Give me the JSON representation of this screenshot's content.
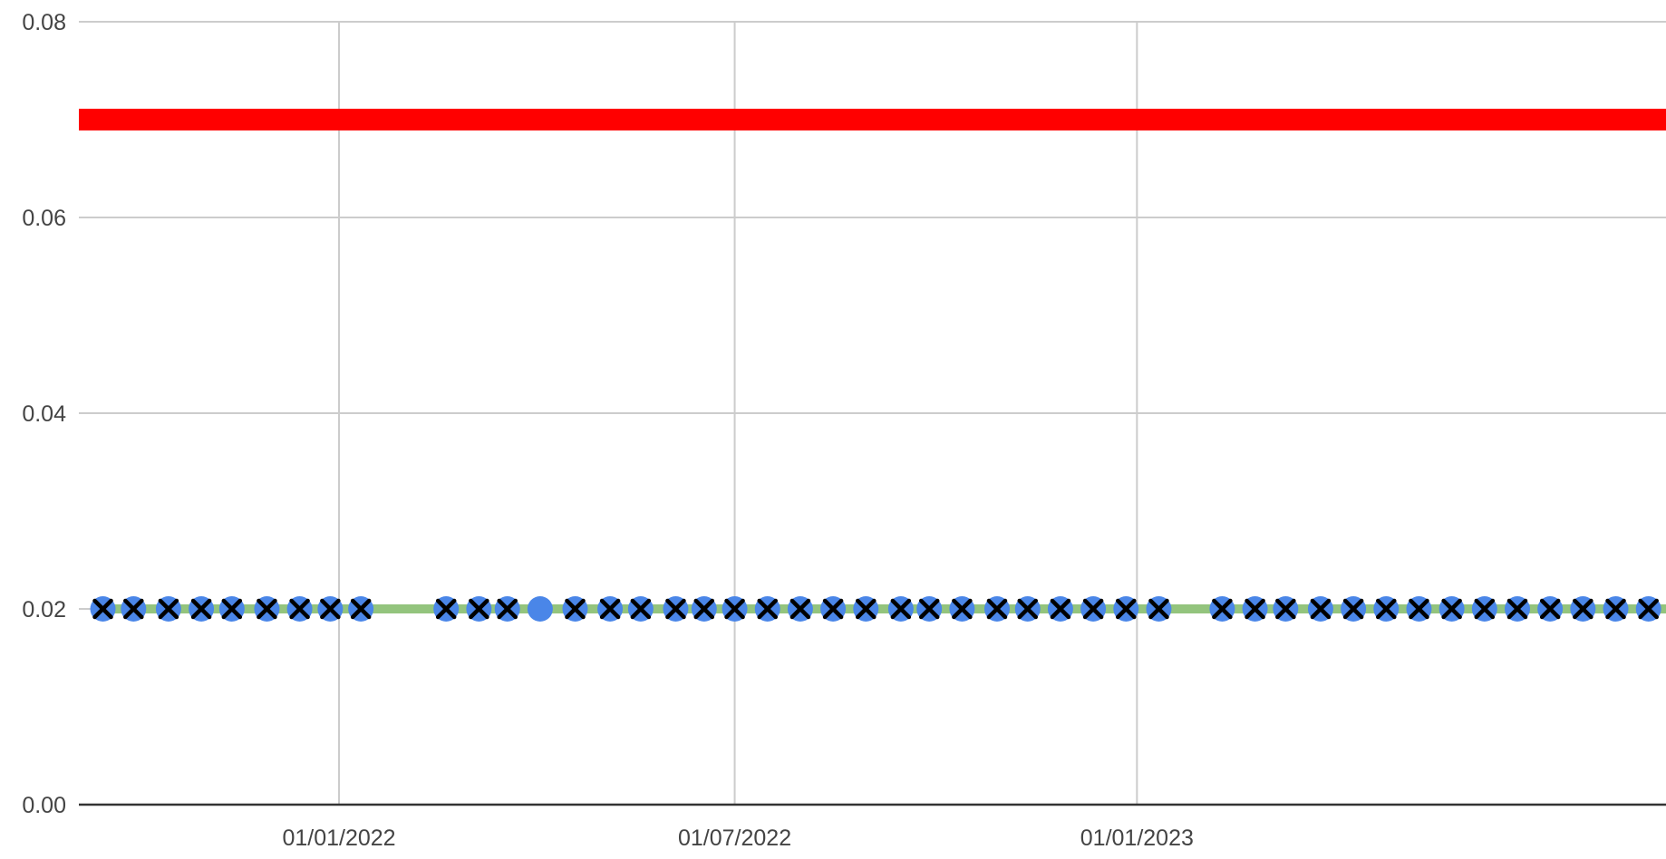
{
  "chart_data": {
    "type": "line",
    "title": "",
    "xlabel": "",
    "ylabel": "",
    "x_axis_type": "date",
    "xlim": [
      "2021-09-04",
      "2023-08-31"
    ],
    "ylim": [
      0,
      0.08
    ],
    "grid": true,
    "legend": "none",
    "y_ticks": [
      {
        "value": 0.0,
        "label": "0.00"
      },
      {
        "value": 0.02,
        "label": "0.02"
      },
      {
        "value": 0.04,
        "label": "0.04"
      },
      {
        "value": 0.06,
        "label": "0.06"
      },
      {
        "value": 0.08,
        "label": "0.08"
      }
    ],
    "x_ticks": [
      {
        "value": "2022-01-01",
        "label": "01/01/2022"
      },
      {
        "value": "2022-07-01",
        "label": "01/07/2022"
      },
      {
        "value": "2023-01-01",
        "label": "01/01/2023"
      }
    ],
    "colors": {
      "limit": "#ff0000",
      "series_line": "#93c47d",
      "marker": "#4a86e8",
      "cross": "#000000",
      "grid": "#cccccc",
      "axis": "#333333",
      "tick_text": "#444444"
    },
    "reference_lines": [
      {
        "y": 0.07,
        "x_start": "2021-09-04",
        "x_end": "2023-08-31"
      }
    ],
    "series": [
      {
        "line": {
          "y": 0.02,
          "x_start": "2021-09-15",
          "x_end": "2023-08-31"
        },
        "points": [
          {
            "x": "2021-09-15",
            "y": 0.02,
            "cross": true
          },
          {
            "x": "2021-09-29",
            "y": 0.02,
            "cross": true
          },
          {
            "x": "2021-10-15",
            "y": 0.02,
            "cross": true
          },
          {
            "x": "2021-10-30",
            "y": 0.02,
            "cross": true
          },
          {
            "x": "2021-11-13",
            "y": 0.02,
            "cross": true
          },
          {
            "x": "2021-11-29",
            "y": 0.02,
            "cross": true
          },
          {
            "x": "2021-12-14",
            "y": 0.02,
            "cross": true
          },
          {
            "x": "2021-12-28",
            "y": 0.02,
            "cross": true
          },
          {
            "x": "2022-01-11",
            "y": 0.02,
            "cross": true
          },
          {
            "x": "2022-02-19",
            "y": 0.02,
            "cross": true
          },
          {
            "x": "2022-03-06",
            "y": 0.02,
            "cross": true
          },
          {
            "x": "2022-03-19",
            "y": 0.02,
            "cross": true
          },
          {
            "x": "2022-04-03",
            "y": 0.02,
            "cross": false
          },
          {
            "x": "2022-04-19",
            "y": 0.02,
            "cross": true
          },
          {
            "x": "2022-05-05",
            "y": 0.02,
            "cross": true
          },
          {
            "x": "2022-05-19",
            "y": 0.02,
            "cross": true
          },
          {
            "x": "2022-06-04",
            "y": 0.02,
            "cross": true
          },
          {
            "x": "2022-06-17",
            "y": 0.02,
            "cross": true
          },
          {
            "x": "2022-07-01",
            "y": 0.02,
            "cross": true
          },
          {
            "x": "2022-07-16",
            "y": 0.02,
            "cross": true
          },
          {
            "x": "2022-07-31",
            "y": 0.02,
            "cross": true
          },
          {
            "x": "2022-08-15",
            "y": 0.02,
            "cross": true
          },
          {
            "x": "2022-08-30",
            "y": 0.02,
            "cross": true
          },
          {
            "x": "2022-09-15",
            "y": 0.02,
            "cross": true
          },
          {
            "x": "2022-09-28",
            "y": 0.02,
            "cross": true
          },
          {
            "x": "2022-10-13",
            "y": 0.02,
            "cross": true
          },
          {
            "x": "2022-10-29",
            "y": 0.02,
            "cross": true
          },
          {
            "x": "2022-11-12",
            "y": 0.02,
            "cross": true
          },
          {
            "x": "2022-11-27",
            "y": 0.02,
            "cross": true
          },
          {
            "x": "2022-12-12",
            "y": 0.02,
            "cross": true
          },
          {
            "x": "2022-12-27",
            "y": 0.02,
            "cross": true
          },
          {
            "x": "2023-01-11",
            "y": 0.02,
            "cross": true
          },
          {
            "x": "2023-02-09",
            "y": 0.02,
            "cross": true
          },
          {
            "x": "2023-02-24",
            "y": 0.02,
            "cross": true
          },
          {
            "x": "2023-03-10",
            "y": 0.02,
            "cross": true
          },
          {
            "x": "2023-03-26",
            "y": 0.02,
            "cross": true
          },
          {
            "x": "2023-04-10",
            "y": 0.02,
            "cross": true
          },
          {
            "x": "2023-04-25",
            "y": 0.02,
            "cross": true
          },
          {
            "x": "2023-05-10",
            "y": 0.02,
            "cross": true
          },
          {
            "x": "2023-05-25",
            "y": 0.02,
            "cross": true
          },
          {
            "x": "2023-06-09",
            "y": 0.02,
            "cross": true
          },
          {
            "x": "2023-06-24",
            "y": 0.02,
            "cross": true
          },
          {
            "x": "2023-07-09",
            "y": 0.02,
            "cross": true
          },
          {
            "x": "2023-07-24",
            "y": 0.02,
            "cross": true
          },
          {
            "x": "2023-08-08",
            "y": 0.02,
            "cross": true
          },
          {
            "x": "2023-08-23",
            "y": 0.02,
            "cross": true
          }
        ]
      }
    ]
  }
}
